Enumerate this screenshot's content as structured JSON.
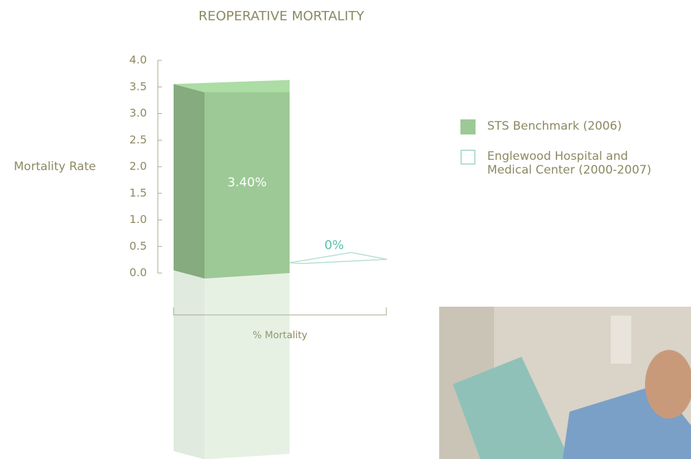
{
  "chart_data": {
    "type": "bar3d",
    "title": "REOPERATIVE MORTALITY",
    "y_label": "Mortality Rate",
    "x_label": "% Mortality",
    "categories": [
      "% Mortality"
    ],
    "series": [
      {
        "name": "STS Benchmark (2006)",
        "color": "#9cc995",
        "values": [
          3.4
        ],
        "value_labels": [
          "3.40%"
        ]
      },
      {
        "name": "Englewood Hospital and Medical Center (2000-2007)",
        "color": "#b4ded3",
        "values": [
          0
        ],
        "value_labels": [
          "0%"
        ]
      }
    ],
    "ylim": [
      0,
      4
    ],
    "yticks": [
      {
        "value": 0,
        "label": "0.0"
      },
      0.5,
      {
        "value": 1,
        "label": "1.0"
      },
      1.5,
      {
        "value": 2,
        "label": "2.0"
      },
      2.5,
      {
        "value": 3,
        "label": "3.0"
      },
      3.5,
      {
        "value": 4,
        "label": "4.0"
      }
    ]
  }
}
